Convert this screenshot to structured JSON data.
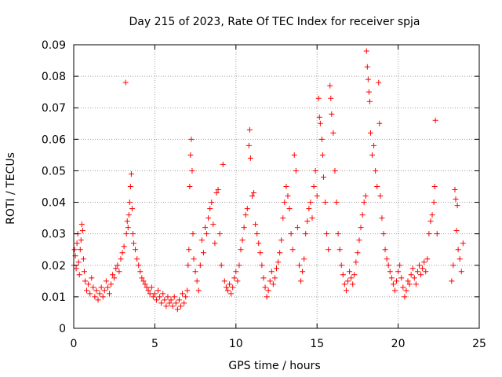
{
  "chart_data": {
    "type": "scatter",
    "title": "Day 215 of 2023, Rate Of TEC Index for receiver spja",
    "xlabel": "GPS time / hours",
    "ylabel": "ROTI / TECUs",
    "xlim": [
      0,
      25
    ],
    "ylim": [
      0,
      0.09
    ],
    "x_ticks": [
      "0",
      "5",
      "10",
      "15",
      "20",
      "25"
    ],
    "y_ticks": [
      "0",
      "0.01",
      "0.02",
      "0.03",
      "0.04",
      "0.05",
      "0.06",
      "0.07",
      "0.08",
      "0.09"
    ],
    "grid": true,
    "legend": "none",
    "marker": "plus",
    "colors": {
      "series": "#ff0000",
      "grid": "#a0a0a0",
      "frame": "#000000"
    },
    "series": [
      {
        "points": [
          [
            0.0,
            0.02
          ],
          [
            0.05,
            0.025
          ],
          [
            0.1,
            0.023
          ],
          [
            0.15,
            0.019
          ],
          [
            0.2,
            0.027
          ],
          [
            0.25,
            0.03
          ],
          [
            0.3,
            0.021
          ],
          [
            0.35,
            0.017
          ],
          [
            0.4,
            0.025
          ],
          [
            0.45,
            0.028
          ],
          [
            0.5,
            0.033
          ],
          [
            0.55,
            0.031
          ],
          [
            0.6,
            0.022
          ],
          [
            0.65,
            0.018
          ],
          [
            0.7,
            0.015
          ],
          [
            0.8,
            0.012
          ],
          [
            0.9,
            0.014
          ],
          [
            1.0,
            0.011
          ],
          [
            1.1,
            0.016
          ],
          [
            1.2,
            0.013
          ],
          [
            1.3,
            0.01
          ],
          [
            1.4,
            0.012
          ],
          [
            1.5,
            0.009
          ],
          [
            1.6,
            0.011
          ],
          [
            1.7,
            0.013
          ],
          [
            1.8,
            0.01
          ],
          [
            1.9,
            0.012
          ],
          [
            2.0,
            0.015
          ],
          [
            2.1,
            0.013
          ],
          [
            2.2,
            0.011
          ],
          [
            2.3,
            0.014
          ],
          [
            2.4,
            0.017
          ],
          [
            2.5,
            0.016
          ],
          [
            2.6,
            0.019
          ],
          [
            2.7,
            0.02
          ],
          [
            2.8,
            0.018
          ],
          [
            2.9,
            0.022
          ],
          [
            3.0,
            0.024
          ],
          [
            3.1,
            0.026
          ],
          [
            3.2,
            0.078
          ],
          [
            3.25,
            0.03
          ],
          [
            3.3,
            0.034
          ],
          [
            3.35,
            0.032
          ],
          [
            3.4,
            0.036
          ],
          [
            3.45,
            0.04
          ],
          [
            3.5,
            0.045
          ],
          [
            3.55,
            0.049
          ],
          [
            3.6,
            0.038
          ],
          [
            3.65,
            0.03
          ],
          [
            3.7,
            0.027
          ],
          [
            3.8,
            0.025
          ],
          [
            3.9,
            0.022
          ],
          [
            4.0,
            0.02
          ],
          [
            4.1,
            0.018
          ],
          [
            4.2,
            0.016
          ],
          [
            4.3,
            0.015
          ],
          [
            4.4,
            0.014
          ],
          [
            4.5,
            0.013
          ],
          [
            4.6,
            0.012
          ],
          [
            4.7,
            0.011
          ],
          [
            4.8,
            0.013
          ],
          [
            4.9,
            0.01
          ],
          [
            5.0,
            0.011
          ],
          [
            5.1,
            0.009
          ],
          [
            5.2,
            0.012
          ],
          [
            5.3,
            0.01
          ],
          [
            5.4,
            0.008
          ],
          [
            5.5,
            0.011
          ],
          [
            5.6,
            0.009
          ],
          [
            5.7,
            0.007
          ],
          [
            5.8,
            0.01
          ],
          [
            5.9,
            0.008
          ],
          [
            6.0,
            0.009
          ],
          [
            6.1,
            0.007
          ],
          [
            6.2,
            0.01
          ],
          [
            6.3,
            0.008
          ],
          [
            6.4,
            0.006
          ],
          [
            6.5,
            0.009
          ],
          [
            6.6,
            0.007
          ],
          [
            6.7,
            0.011
          ],
          [
            6.8,
            0.008
          ],
          [
            6.9,
            0.01
          ],
          [
            7.0,
            0.012
          ],
          [
            7.05,
            0.02
          ],
          [
            7.1,
            0.025
          ],
          [
            7.15,
            0.045
          ],
          [
            7.2,
            0.055
          ],
          [
            7.25,
            0.06
          ],
          [
            7.3,
            0.05
          ],
          [
            7.35,
            0.03
          ],
          [
            7.4,
            0.022
          ],
          [
            7.5,
            0.018
          ],
          [
            7.6,
            0.015
          ],
          [
            7.7,
            0.012
          ],
          [
            7.8,
            0.02
          ],
          [
            7.9,
            0.028
          ],
          [
            8.0,
            0.024
          ],
          [
            8.1,
            0.032
          ],
          [
            8.2,
            0.03
          ],
          [
            8.3,
            0.035
          ],
          [
            8.4,
            0.038
          ],
          [
            8.5,
            0.04
          ],
          [
            8.6,
            0.033
          ],
          [
            8.7,
            0.027
          ],
          [
            8.8,
            0.043
          ],
          [
            8.9,
            0.044
          ],
          [
            9.0,
            0.03
          ],
          [
            9.1,
            0.02
          ],
          [
            9.2,
            0.052
          ],
          [
            9.3,
            0.015
          ],
          [
            9.4,
            0.013
          ],
          [
            9.5,
            0.012
          ],
          [
            9.6,
            0.014
          ],
          [
            9.7,
            0.011
          ],
          [
            9.8,
            0.013
          ],
          [
            9.9,
            0.016
          ],
          [
            10.0,
            0.018
          ],
          [
            10.1,
            0.015
          ],
          [
            10.2,
            0.02
          ],
          [
            10.3,
            0.025
          ],
          [
            10.4,
            0.028
          ],
          [
            10.5,
            0.032
          ],
          [
            10.6,
            0.036
          ],
          [
            10.7,
            0.038
          ],
          [
            10.8,
            0.058
          ],
          [
            10.85,
            0.063
          ],
          [
            10.9,
            0.054
          ],
          [
            11.0,
            0.042
          ],
          [
            11.1,
            0.043
          ],
          [
            11.2,
            0.033
          ],
          [
            11.3,
            0.03
          ],
          [
            11.4,
            0.027
          ],
          [
            11.5,
            0.024
          ],
          [
            11.6,
            0.02
          ],
          [
            11.7,
            0.016
          ],
          [
            11.8,
            0.013
          ],
          [
            11.9,
            0.01
          ],
          [
            12.0,
            0.012
          ],
          [
            12.1,
            0.015
          ],
          [
            12.2,
            0.018
          ],
          [
            12.3,
            0.014
          ],
          [
            12.4,
            0.016
          ],
          [
            12.5,
            0.019
          ],
          [
            12.6,
            0.021
          ],
          [
            12.7,
            0.024
          ],
          [
            12.8,
            0.028
          ],
          [
            12.9,
            0.035
          ],
          [
            13.0,
            0.04
          ],
          [
            13.1,
            0.045
          ],
          [
            13.2,
            0.042
          ],
          [
            13.3,
            0.038
          ],
          [
            13.4,
            0.03
          ],
          [
            13.5,
            0.025
          ],
          [
            13.6,
            0.055
          ],
          [
            13.7,
            0.05
          ],
          [
            13.8,
            0.032
          ],
          [
            13.9,
            0.02
          ],
          [
            14.0,
            0.015
          ],
          [
            14.1,
            0.018
          ],
          [
            14.2,
            0.022
          ],
          [
            14.3,
            0.03
          ],
          [
            14.4,
            0.034
          ],
          [
            14.5,
            0.038
          ],
          [
            14.6,
            0.04
          ],
          [
            14.7,
            0.035
          ],
          [
            14.8,
            0.045
          ],
          [
            14.9,
            0.05
          ],
          [
            15.0,
            0.042
          ],
          [
            15.1,
            0.073
          ],
          [
            15.15,
            0.067
          ],
          [
            15.2,
            0.065
          ],
          [
            15.3,
            0.06
          ],
          [
            15.35,
            0.055
          ],
          [
            15.4,
            0.048
          ],
          [
            15.5,
            0.04
          ],
          [
            15.6,
            0.03
          ],
          [
            15.7,
            0.025
          ],
          [
            15.8,
            0.077
          ],
          [
            15.85,
            0.073
          ],
          [
            15.9,
            0.068
          ],
          [
            16.0,
            0.062
          ],
          [
            16.1,
            0.05
          ],
          [
            16.2,
            0.04
          ],
          [
            16.3,
            0.03
          ],
          [
            16.4,
            0.025
          ],
          [
            16.5,
            0.02
          ],
          [
            16.6,
            0.017
          ],
          [
            16.7,
            0.014
          ],
          [
            16.8,
            0.012
          ],
          [
            16.9,
            0.015
          ],
          [
            17.0,
            0.018
          ],
          [
            17.1,
            0.016
          ],
          [
            17.2,
            0.014
          ],
          [
            17.3,
            0.017
          ],
          [
            17.4,
            0.021
          ],
          [
            17.5,
            0.024
          ],
          [
            17.6,
            0.028
          ],
          [
            17.7,
            0.032
          ],
          [
            17.8,
            0.036
          ],
          [
            17.9,
            0.04
          ],
          [
            18.0,
            0.042
          ],
          [
            18.05,
            0.088
          ],
          [
            18.1,
            0.083
          ],
          [
            18.15,
            0.079
          ],
          [
            18.2,
            0.075
          ],
          [
            18.25,
            0.072
          ],
          [
            18.3,
            0.062
          ],
          [
            18.4,
            0.055
          ],
          [
            18.5,
            0.058
          ],
          [
            18.6,
            0.05
          ],
          [
            18.7,
            0.045
          ],
          [
            18.8,
            0.078
          ],
          [
            18.85,
            0.065
          ],
          [
            18.9,
            0.042
          ],
          [
            19.0,
            0.035
          ],
          [
            19.1,
            0.03
          ],
          [
            19.2,
            0.025
          ],
          [
            19.3,
            0.022
          ],
          [
            19.4,
            0.02
          ],
          [
            19.5,
            0.018
          ],
          [
            19.6,
            0.016
          ],
          [
            19.7,
            0.014
          ],
          [
            19.8,
            0.012
          ],
          [
            19.9,
            0.015
          ],
          [
            20.0,
            0.018
          ],
          [
            20.1,
            0.02
          ],
          [
            20.2,
            0.016
          ],
          [
            20.3,
            0.013
          ],
          [
            20.4,
            0.01
          ],
          [
            20.5,
            0.012
          ],
          [
            20.6,
            0.015
          ],
          [
            20.7,
            0.014
          ],
          [
            20.8,
            0.017
          ],
          [
            20.9,
            0.019
          ],
          [
            21.0,
            0.016
          ],
          [
            21.1,
            0.014
          ],
          [
            21.2,
            0.018
          ],
          [
            21.3,
            0.02
          ],
          [
            21.4,
            0.017
          ],
          [
            21.5,
            0.019
          ],
          [
            21.6,
            0.021
          ],
          [
            21.7,
            0.018
          ],
          [
            21.8,
            0.022
          ],
          [
            21.9,
            0.03
          ],
          [
            22.0,
            0.034
          ],
          [
            22.1,
            0.036
          ],
          [
            22.2,
            0.04
          ],
          [
            22.25,
            0.045
          ],
          [
            22.3,
            0.066
          ],
          [
            22.4,
            0.03
          ],
          [
            23.3,
            0.015
          ],
          [
            23.4,
            0.02
          ],
          [
            23.5,
            0.044
          ],
          [
            23.55,
            0.041
          ],
          [
            23.6,
            0.031
          ],
          [
            23.65,
            0.039
          ],
          [
            23.7,
            0.025
          ],
          [
            23.8,
            0.022
          ],
          [
            23.9,
            0.018
          ],
          [
            24.0,
            0.027
          ]
        ]
      }
    ]
  }
}
